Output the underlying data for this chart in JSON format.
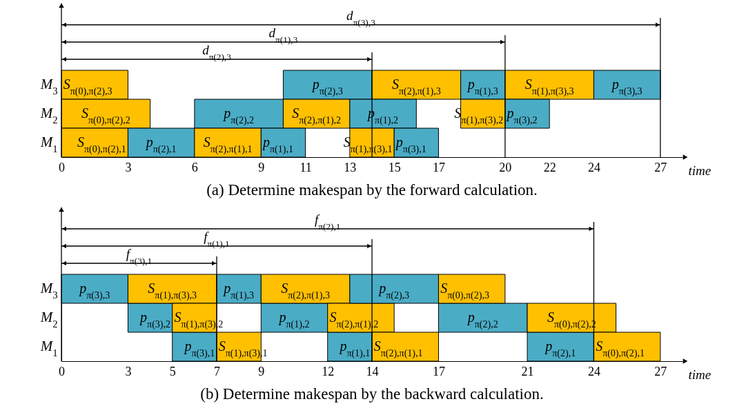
{
  "chart_data": [
    {
      "type": "bar",
      "orientation": "horizontal",
      "title": "(a) Determine makespan by the forward calculation.",
      "xlabel": "time",
      "categories": [
        "M$_{3}$",
        "M$_{2}$",
        "M$_{1}$"
      ],
      "xlim": [
        0,
        28
      ],
      "xticks": [
        0,
        3,
        6,
        9,
        11,
        13,
        15,
        17,
        20,
        22,
        24,
        27
      ],
      "series": [
        {
          "base": [
            0,
            0,
            0
          ],
          "values": [
            3,
            4,
            3
          ],
          "colors": [
            "#ffc000",
            "#ffc000",
            "#ffc000"
          ],
          "value_labels": [
            "S$_{π(0),π(2),3}$",
            "S$_{π(0),π(2),2}$",
            "S$_{π(0),π(2),1}$"
          ]
        },
        {
          "base": [
            10,
            6,
            3
          ],
          "values": [
            4,
            4,
            3
          ],
          "colors": [
            "#4bacc6",
            "#4bacc6",
            "#4bacc6"
          ],
          "value_labels": [
            "p$_{π(2),3}$",
            "p$_{π(2),2}$",
            "p$_{π(2),1}$"
          ]
        },
        {
          "base": [
            14,
            10,
            6
          ],
          "values": [
            4,
            3,
            3
          ],
          "colors": [
            "#ffc000",
            "#ffc000",
            "#ffc000"
          ],
          "value_labels": [
            "S$_{π(2),π(1),3}$",
            "S$_{π(2),π(1),2}$",
            "S$_{π(2),π(1),1}$"
          ]
        },
        {
          "base": [
            18,
            13,
            9
          ],
          "values": [
            2,
            3,
            2
          ],
          "colors": [
            "#4bacc6",
            "#4bacc6",
            "#4bacc6"
          ],
          "value_labels": [
            "p$_{π(1),3}$",
            "p$_{π(1),2}$",
            "p$_{π(1),1}$"
          ]
        },
        {
          "base": [
            20,
            18,
            13
          ],
          "values": [
            4,
            2,
            2
          ],
          "colors": [
            "#ffc000",
            "#ffc000",
            "#ffc000"
          ],
          "value_labels": [
            "S$_{π(1),π(3),3}$",
            "S$_{π(1),π(3),2}$",
            "S$_{π(1),π(3),1}$"
          ]
        },
        {
          "base": [
            24,
            20,
            15
          ],
          "values": [
            3,
            2,
            2
          ],
          "colors": [
            "#4bacc6",
            "#4bacc6",
            "#4bacc6"
          ],
          "value_labels": [
            "p$_{π(3),3}$",
            "p$_{π(3),2}$",
            "p$_{π(3),1}$"
          ]
        }
      ],
      "ref_lines": [
        {
          "axis": "x",
          "value": 27
        },
        {
          "axis": "x",
          "value": 20
        },
        {
          "axis": "x",
          "value": 14
        }
      ],
      "annotations": [
        "d$_{π(3),3}$",
        "d$_{π(1),3}$",
        "d$_{π(2),3}$"
      ]
    },
    {
      "type": "bar",
      "orientation": "horizontal",
      "title": "(b) Determine makespan by the backward calculation.",
      "xlabel": "time",
      "categories": [
        "M$_{3}$",
        "M$_{2}$",
        "M$_{1}$"
      ],
      "xlim": [
        0,
        28
      ],
      "xticks": [
        0,
        3,
        5,
        7,
        9,
        12,
        14,
        17,
        21,
        24,
        27
      ],
      "series": [
        {
          "base": [
            0,
            3,
            5
          ],
          "values": [
            3,
            2,
            2
          ],
          "colors": [
            "#4bacc6",
            "#4bacc6",
            "#4bacc6"
          ],
          "value_labels": [
            "p$_{π(3),3}$",
            "p$_{π(3),2}$",
            "p$_{π(3),1}$"
          ]
        },
        {
          "base": [
            3,
            5,
            7
          ],
          "values": [
            4,
            2,
            2
          ],
          "colors": [
            "#ffc000",
            "#ffc000",
            "#ffc000"
          ],
          "value_labels": [
            "S$_{π(1),π(3),3}$",
            "S$_{π(1),π(3),2}$",
            "S$_{π(1),π(3),1}$"
          ]
        },
        {
          "base": [
            7,
            9,
            12
          ],
          "values": [
            2,
            3,
            2
          ],
          "colors": [
            "#4bacc6",
            "#4bacc6",
            "#4bacc6"
          ],
          "value_labels": [
            "p$_{π(1),3}$",
            "p$_{π(1),2}$",
            "p$_{π(1),1}$"
          ]
        },
        {
          "base": [
            9,
            12,
            14
          ],
          "values": [
            4,
            3,
            3
          ],
          "colors": [
            "#ffc000",
            "#ffc000",
            "#ffc000"
          ],
          "value_labels": [
            "S$_{π(2),π(1),3}$",
            "S$_{π(2),π(1),2}$",
            "S$_{π(2),π(1),1}$"
          ]
        },
        {
          "base": [
            13,
            17,
            21
          ],
          "values": [
            4,
            4,
            3
          ],
          "colors": [
            "#4bacc6",
            "#4bacc6",
            "#4bacc6"
          ],
          "value_labels": [
            "p$_{π(2),3}$",
            "p$_{π(2),2}$",
            "p$_{π(2),1}$"
          ]
        },
        {
          "base": [
            17,
            21,
            24
          ],
          "values": [
            3,
            4,
            3
          ],
          "colors": [
            "#ffc000",
            "#ffc000",
            "#ffc000"
          ],
          "value_labels": [
            "S$_{π(0),π(2),3}$",
            "S$_{π(0),π(2),2}$",
            "S$_{π(0),π(2),1}$"
          ]
        }
      ],
      "ref_lines": [
        {
          "axis": "x",
          "value": 24
        },
        {
          "axis": "x",
          "value": 14
        },
        {
          "axis": "x",
          "value": 7
        }
      ],
      "annotations": [
        "f$_{π(2),1}$",
        "f$_{π(1),1}$",
        "f$_{π(3),1}$"
      ]
    }
  ]
}
